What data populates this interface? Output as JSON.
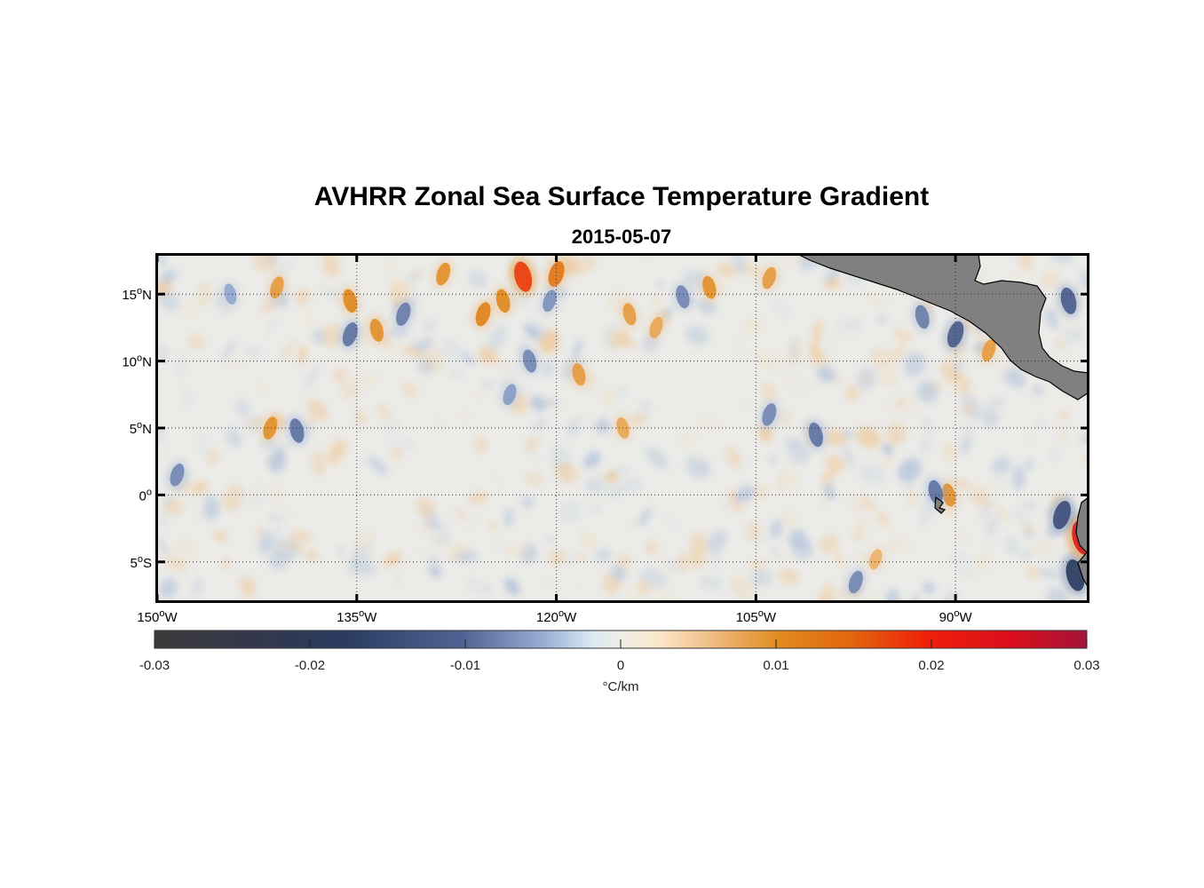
{
  "figure": {
    "title": "AVHRR Zonal Sea Surface Temperature Gradient",
    "subtitle": "2015-05-07"
  },
  "map": {
    "lon_range": [
      -150,
      -80
    ],
    "lat_range": [
      -8,
      18
    ],
    "x_ticks": [
      {
        "value": -150,
        "deg": "150",
        "hemi": "W"
      },
      {
        "value": -135,
        "deg": "135",
        "hemi": "W"
      },
      {
        "value": -120,
        "deg": "120",
        "hemi": "W"
      },
      {
        "value": -105,
        "deg": "105",
        "hemi": "W"
      },
      {
        "value": -90,
        "deg": "90",
        "hemi": "W"
      }
    ],
    "y_ticks": [
      {
        "value": 15,
        "deg": "15",
        "hemi": "N"
      },
      {
        "value": 10,
        "deg": "10",
        "hemi": "N"
      },
      {
        "value": 5,
        "deg": "5",
        "hemi": "N"
      },
      {
        "value": 0,
        "deg": "0",
        "hemi": ""
      },
      {
        "value": -5,
        "deg": "5",
        "hemi": "S"
      }
    ],
    "degree_symbol": "o",
    "grid": "dotted",
    "land_color": "#808080",
    "ocean_background": "#ebebe8"
  },
  "colorbar": {
    "min": -0.03,
    "max": 0.03,
    "ticks": [
      "-0.03",
      "-0.02",
      "-0.01",
      "0",
      "0.01",
      "0.02",
      "0.03"
    ],
    "unit": "°C/km",
    "colors": [
      "#3a3a3a",
      "#2a3a5c",
      "#6a82b4",
      "#d9e6f2",
      "#f0efe6",
      "#fbe5c8",
      "#e08a1e",
      "#e0620a",
      "#f01a0a",
      "#a01430"
    ]
  },
  "chart_data": {
    "type": "heatmap",
    "title": "AVHRR Zonal Sea Surface Temperature Gradient",
    "subtitle": "2015-05-07",
    "xlabel": "",
    "ylabel": "",
    "xlim": [
      -150,
      -80
    ],
    "ylim": [
      -8,
      18
    ],
    "colorbar_range": [
      -0.03,
      0.03
    ],
    "colorbar_label": "°C/km",
    "features": [
      {
        "lon": -122.5,
        "lat": 16.3,
        "value": 0.02
      },
      {
        "lon": -125.5,
        "lat": 13.5,
        "value": 0.012
      },
      {
        "lon": -124,
        "lat": 14.5,
        "value": 0.011
      },
      {
        "lon": -120,
        "lat": 16.5,
        "value": 0.014
      },
      {
        "lon": -133.5,
        "lat": 12.3,
        "value": 0.01
      },
      {
        "lon": -128.5,
        "lat": 16.5,
        "value": 0.01
      },
      {
        "lon": -135.5,
        "lat": 14.5,
        "value": 0.011
      },
      {
        "lon": -141,
        "lat": 15.5,
        "value": 0.009
      },
      {
        "lon": -108.5,
        "lat": 15.5,
        "value": 0.01
      },
      {
        "lon": -104,
        "lat": 16.2,
        "value": 0.009
      },
      {
        "lon": -114.5,
        "lat": 13.5,
        "value": 0.009
      },
      {
        "lon": -112.5,
        "lat": 12.5,
        "value": 0.008
      },
      {
        "lon": -118.3,
        "lat": 9.0,
        "value": 0.009
      },
      {
        "lon": -141.5,
        "lat": 5.0,
        "value": 0.01
      },
      {
        "lon": -115,
        "lat": 5.0,
        "value": 0.008
      },
      {
        "lon": -87.5,
        "lat": 10.8,
        "value": 0.009
      },
      {
        "lon": -90.5,
        "lat": 0.0,
        "value": 0.01
      },
      {
        "lon": -96,
        "lat": -4.8,
        "value": 0.007
      },
      {
        "lon": -80.5,
        "lat": -3.2,
        "value": 0.025
      },
      {
        "lon": -135.5,
        "lat": 12.0,
        "value": -0.012
      },
      {
        "lon": -139.5,
        "lat": 4.8,
        "value": -0.012
      },
      {
        "lon": -131.5,
        "lat": 13.5,
        "value": -0.011
      },
      {
        "lon": -122,
        "lat": 10.0,
        "value": -0.01
      },
      {
        "lon": -123.5,
        "lat": 7.5,
        "value": -0.008
      },
      {
        "lon": -110.5,
        "lat": 14.8,
        "value": -0.01
      },
      {
        "lon": -120.5,
        "lat": 14.5,
        "value": -0.009
      },
      {
        "lon": -100.5,
        "lat": 4.5,
        "value": -0.012
      },
      {
        "lon": -104,
        "lat": 6.0,
        "value": -0.01
      },
      {
        "lon": -92.5,
        "lat": 13.3,
        "value": -0.011
      },
      {
        "lon": -90,
        "lat": 12.0,
        "value": -0.015
      },
      {
        "lon": -81.5,
        "lat": 14.5,
        "value": -0.015
      },
      {
        "lon": -82,
        "lat": -1.5,
        "value": -0.018
      },
      {
        "lon": -81,
        "lat": -6.0,
        "value": -0.022
      },
      {
        "lon": -148.5,
        "lat": 1.5,
        "value": -0.01
      },
      {
        "lon": -91.5,
        "lat": 0.2,
        "value": -0.012
      },
      {
        "lon": -97.5,
        "lat": -6.5,
        "value": -0.01
      },
      {
        "lon": -144.5,
        "lat": 15.0,
        "value": -0.007
      }
    ]
  }
}
